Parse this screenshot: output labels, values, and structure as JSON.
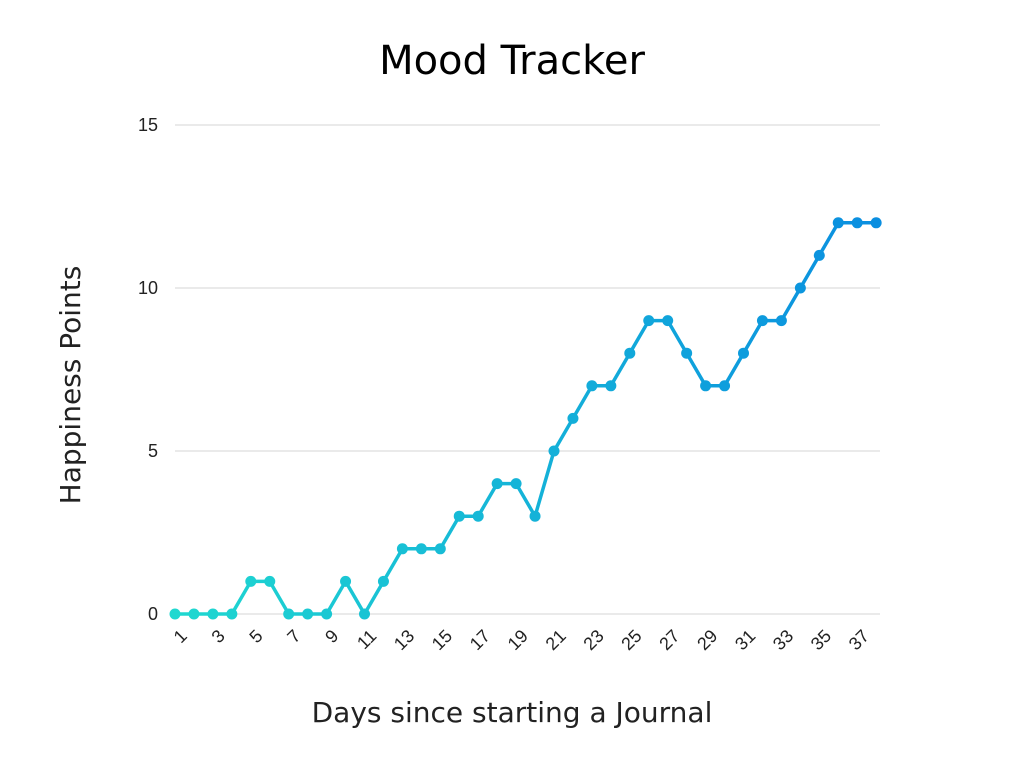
{
  "chart_data": {
    "type": "line",
    "title": "Mood Tracker",
    "xlabel": "Days since starting a Journal",
    "ylabel": "Happiness Points",
    "x": [
      1,
      2,
      3,
      4,
      5,
      6,
      7,
      8,
      9,
      10,
      11,
      12,
      13,
      14,
      15,
      16,
      17,
      18,
      19,
      20,
      21,
      22,
      23,
      24,
      25,
      26,
      27,
      28,
      29,
      30,
      31,
      32,
      33,
      34,
      35,
      36,
      37,
      38
    ],
    "x_tick_labels": [
      "1",
      "3",
      "5",
      "7",
      "9",
      "11",
      "13",
      "15",
      "17",
      "19",
      "21",
      "23",
      "25",
      "27",
      "29",
      "31",
      "33",
      "35",
      "37"
    ],
    "series": [
      {
        "values": [
          0,
          0,
          0,
          0,
          1,
          1,
          0,
          0,
          0,
          1,
          0,
          1,
          2,
          2,
          2,
          3,
          3,
          4,
          4,
          3,
          5,
          6,
          7,
          7,
          8,
          9,
          9,
          8,
          7,
          7,
          8,
          9,
          9,
          10,
          11,
          12,
          12,
          12
        ]
      }
    ],
    "y_ticks": [
      0,
      5,
      10,
      15
    ],
    "ylim": [
      0,
      15
    ],
    "grid": true,
    "legend": "none",
    "colors": {
      "line_start": "#1fd8d0",
      "line_end": "#0a8ee0",
      "grid": "#d4d4d4",
      "text": "#222222"
    }
  }
}
